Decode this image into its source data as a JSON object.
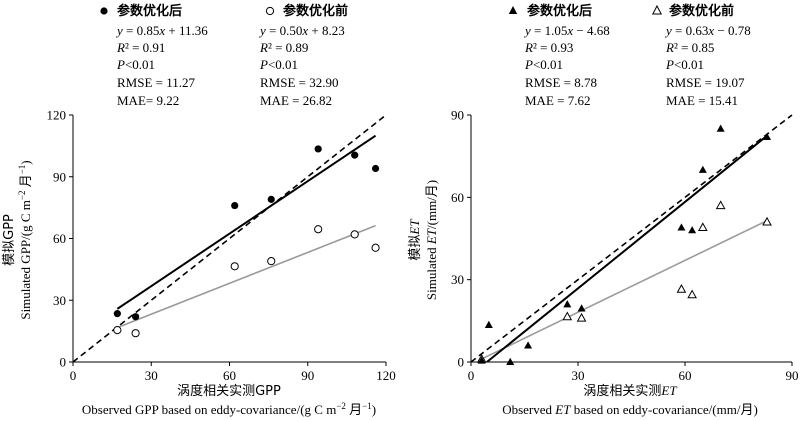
{
  "chart_data": [
    {
      "type": "scatter",
      "id": "gpp",
      "xlabel_cn": "涡度相关实测GPP",
      "xlabel_en": "Observed GPP based on eddy-covariance/(g C m⁻² 月⁻¹)",
      "ylabel_cn": "模拟GPP",
      "ylabel_en": "Simulated GPP/(g C m⁻² 月⁻¹)",
      "xlim": [
        0,
        120
      ],
      "ylim": [
        0,
        120
      ],
      "xticks": [
        0,
        30,
        60,
        90,
        120
      ],
      "yticks": [
        0,
        30,
        60,
        90,
        120
      ],
      "one_to_one_line": true,
      "series": [
        {
          "name": "参数优化后",
          "marker": "filled-circle",
          "x": [
            17,
            24,
            62,
            76,
            94,
            108,
            116
          ],
          "y": [
            23.5,
            22,
            76,
            79,
            103.5,
            100.5,
            94
          ],
          "fit_slope": 0.85,
          "fit_intercept": 11.36,
          "fit_range": [
            17,
            116
          ],
          "stats": [
            "y = 0.85x + 11.36",
            "R² = 0.91",
            "P<0.01",
            "RMSE = 11.27",
            "MAE= 9.22"
          ]
        },
        {
          "name": "参数优化前",
          "marker": "open-circle",
          "x": [
            17,
            24,
            62,
            76,
            94,
            108,
            116
          ],
          "y": [
            15.5,
            14,
            46.5,
            49,
            64.5,
            62,
            55.5
          ],
          "fit_slope": 0.5,
          "fit_intercept": 8.23,
          "fit_range": [
            17,
            116
          ],
          "stats": [
            "y = 0.50x + 8.23",
            "R² = 0.89",
            "P<0.01",
            "RMSE = 32.90",
            "MAE = 26.82"
          ]
        }
      ]
    },
    {
      "type": "scatter",
      "id": "et",
      "xlabel_cn": "涡度相关实测ET",
      "xlabel_en": "Observed ET based on eddy-covariance/(mm/月)",
      "ylabel_cn": "模拟ET",
      "ylabel_en": "Simulated ET/(mm/月)",
      "xlim": [
        0,
        90
      ],
      "ylim": [
        0,
        90
      ],
      "xticks": [
        0,
        30,
        60,
        90
      ],
      "yticks": [
        0,
        30,
        60,
        90
      ],
      "one_to_one_line": true,
      "series": [
        {
          "name": "参数优化后",
          "marker": "filled-triangle",
          "x": [
            3,
            5,
            11,
            16,
            27,
            31,
            59,
            62,
            65,
            70,
            83
          ],
          "y": [
            0.5,
            13.5,
            0,
            6,
            21,
            19.5,
            49,
            48,
            70,
            85,
            82
          ],
          "fit_slope": 1.05,
          "fit_intercept": -4.68,
          "fit_range": [
            4.5,
            83
          ],
          "stats": [
            "y = 1.05x − 4.68",
            "R² = 0.93",
            "P<0.01",
            "RMSE = 8.78",
            "MAE = 7.62"
          ]
        },
        {
          "name": "参数优化前",
          "marker": "open-triangle",
          "x": [
            3,
            27,
            31,
            59,
            62,
            65,
            70,
            83
          ],
          "y": [
            1,
            16.5,
            16,
            26.5,
            24.5,
            49,
            57,
            51
          ],
          "fit_slope": 0.63,
          "fit_intercept": -0.78,
          "fit_range": [
            3,
            83
          ],
          "stats": [
            "y = 0.63x − 0.78",
            "R² = 0.85",
            "P<0.01",
            "RMSE = 19.07",
            "MAE = 15.41"
          ]
        }
      ]
    }
  ]
}
